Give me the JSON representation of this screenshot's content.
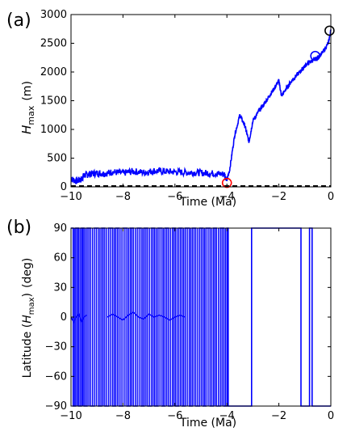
{
  "chart_data": [
    {
      "panel_label": "(a)",
      "type": "line",
      "xlabel": "Time (Ma)",
      "ylabel_main": "H",
      "ylabel_sub": "max",
      "ylabel_unit": "(m)",
      "xlim": [
        -10,
        0
      ],
      "ylim": [
        0,
        3000
      ],
      "xticks": [
        -10,
        -8,
        -6,
        -4,
        -2,
        0
      ],
      "yticks": [
        0,
        500,
        1000,
        1500,
        2000,
        2500,
        3000
      ],
      "grid": false,
      "colors": {
        "series": "#0000ff",
        "baseline": "#000000",
        "marker_red": "#ff0000",
        "marker_blue": "#0000ff",
        "marker_black": "#000000"
      },
      "series": [
        {
          "x": [
            -10,
            -9.8,
            -9.6,
            -9.5,
            -9.3,
            -9.0,
            -8.7,
            -8.4,
            -8.0,
            -7.6,
            -7.2,
            -6.8,
            -6.4,
            -6.0,
            -5.6,
            -5.2,
            -4.8,
            -4.4,
            -4.1,
            -4.0,
            -3.9,
            -3.7,
            -3.5,
            -3.3,
            -3.15,
            -3.0,
            -2.8,
            -2.6,
            -2.4,
            -2.2,
            -2.0,
            -1.9,
            -1.7,
            -1.5,
            -1.3,
            -1.1,
            -0.9,
            -0.7,
            -0.5,
            -0.3,
            -0.1,
            0
          ],
          "y": [
            140,
            100,
            130,
            200,
            220,
            240,
            230,
            260,
            240,
            270,
            250,
            280,
            270,
            260,
            250,
            250,
            240,
            230,
            220,
            120,
            280,
            900,
            1250,
            1050,
            780,
            1150,
            1300,
            1420,
            1560,
            1700,
            1850,
            1580,
            1720,
            1850,
            1950,
            2050,
            2150,
            2200,
            2250,
            2350,
            2500,
            2720
          ]
        }
      ],
      "baseline_y": 0,
      "markers": [
        {
          "x": -4.0,
          "y": 70,
          "color": "red"
        },
        {
          "x": -0.6,
          "y": 2280,
          "color": "blue"
        },
        {
          "x": -0.05,
          "y": 2720,
          "color": "black"
        }
      ]
    },
    {
      "panel_label": "(b)",
      "type": "line",
      "xlabel": "Time (Ma)",
      "ylabel_main": "Latitude (",
      "ylabel_var": "H",
      "ylabel_sub": "max",
      "ylabel_close": ")",
      "ylabel_unit": "(deg)",
      "xlim": [
        -10,
        0
      ],
      "ylim": [
        -90,
        90
      ],
      "xticks": [
        -10,
        -8,
        -6,
        -4,
        -2,
        0
      ],
      "yticks": [
        -90,
        -60,
        -30,
        0,
        30,
        60,
        90
      ],
      "grid": false,
      "reference_lines_y": [
        90,
        -90
      ],
      "colors": {
        "series": "#0000ff",
        "reference": "#888888"
      },
      "flip_intervals": [
        -10,
        -9.92,
        -9.82,
        -9.71,
        -9.6,
        -9.5,
        -9.38,
        -9.25,
        -9.1,
        -8.95,
        -8.82,
        -8.7,
        -8.55,
        -8.4,
        -8.28,
        -8.15,
        -8.0,
        -7.85,
        -7.72,
        -7.6,
        -7.45,
        -7.3,
        -7.18,
        -7.05,
        -6.9,
        -6.78,
        -6.65,
        -6.5,
        -6.38,
        -6.25,
        -6.1,
        -5.98,
        -5.85,
        -5.72,
        -5.6,
        -5.45,
        -5.33,
        -5.2,
        -5.05,
        -4.92,
        -4.8,
        -4.65,
        -4.52,
        -4.4,
        -4.25,
        -4.12,
        -4.0,
        -3.95
      ],
      "segments": [
        {
          "x": [
            -10,
            -9.9,
            -9.8,
            -9.7,
            -9.6,
            -9.5,
            -9.4
          ],
          "y": [
            0,
            -5,
            0,
            3,
            -5,
            0,
            2
          ]
        },
        {
          "x": [
            -8.6,
            -8.4,
            -8.2,
            -8.0,
            -7.8,
            -7.6,
            -7.4,
            -7.2,
            -7.0,
            -6.8,
            -6.6,
            -6.4,
            -6.2,
            -6.0,
            -5.8,
            -5.6
          ],
          "y": [
            0,
            3,
            0,
            -3,
            2,
            5,
            0,
            -2,
            3,
            0,
            2,
            0,
            -3,
            0,
            2,
            0
          ]
        }
      ],
      "tail": {
        "x": [
          -3.95,
          -3.95,
          -3.05,
          -3.05,
          -2.95,
          -2.95,
          -1.15,
          -1.15,
          -0.82,
          -0.82,
          -0.72,
          -0.72,
          -0.5,
          -0.5,
          0
        ],
        "y": [
          90,
          -90,
          -90,
          90,
          90,
          90,
          90,
          -90,
          -90,
          90,
          90,
          -90,
          -90,
          -90,
          -90
        ]
      }
    }
  ]
}
